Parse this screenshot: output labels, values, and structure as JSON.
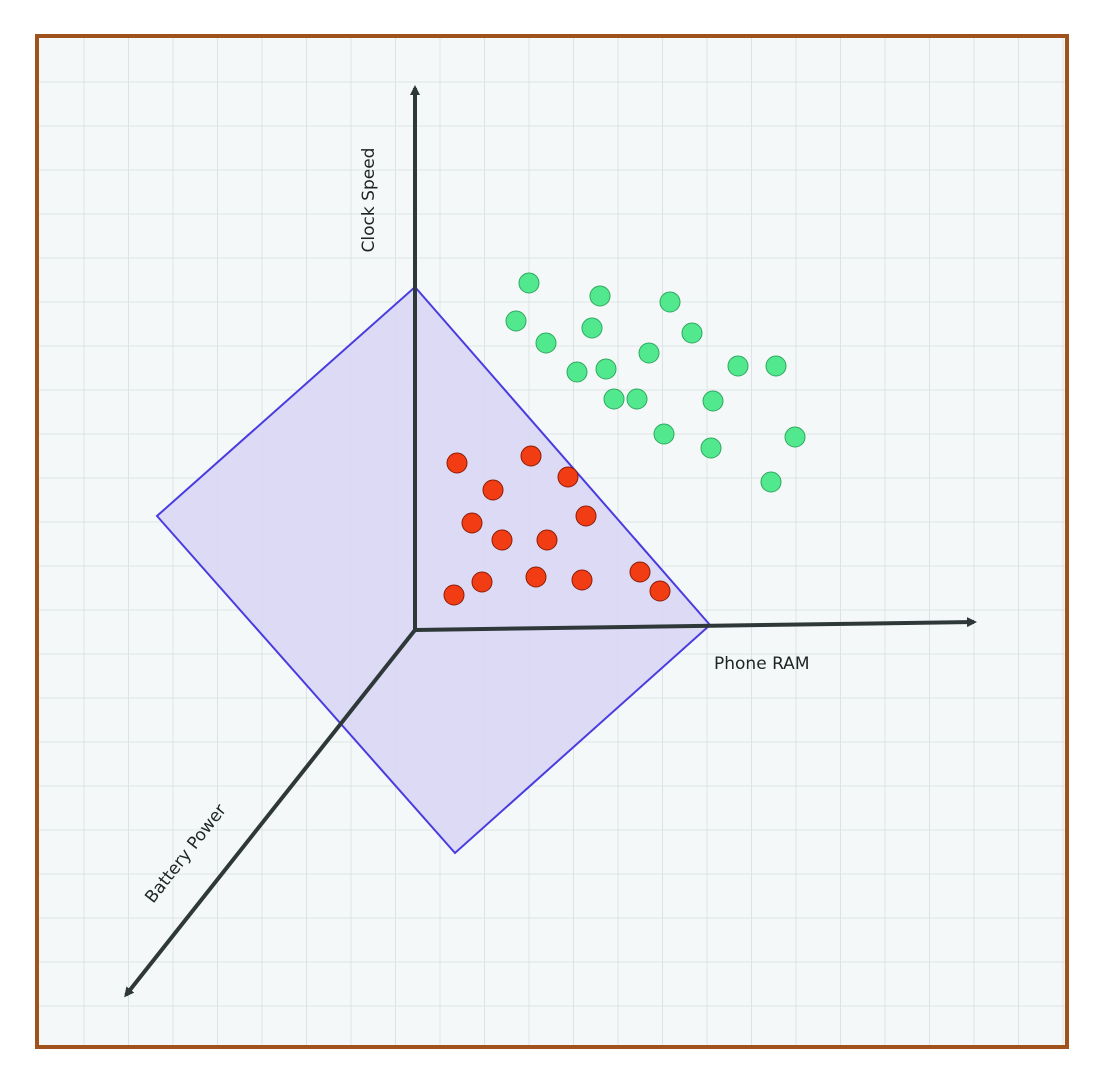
{
  "diagram": {
    "axes": {
      "y_label": "Clock Speed",
      "x_label": "Phone RAM",
      "z_label": "Battery Power"
    },
    "colors": {
      "frame": "#a0521c",
      "background": "#f5f8f8",
      "grid": "#dde3e4",
      "axis": "#2f3838",
      "plane_fill": "#d9d6f4",
      "plane_stroke": "#4a3cdf",
      "class_a_fill": "#f23c14",
      "class_a_stroke": "#8a1d08",
      "class_b_fill": "#52e88e",
      "class_b_stroke": "#2ea860"
    },
    "class_a_count": 15,
    "class_b_count": 20
  }
}
